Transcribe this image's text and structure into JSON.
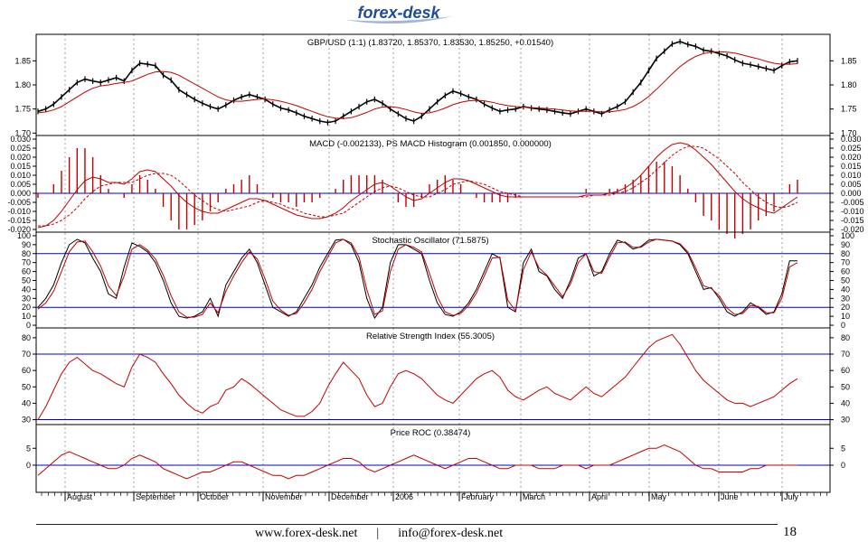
{
  "logo": {
    "text": "forex-desk"
  },
  "footer": {
    "website": "www.forex-desk.net",
    "separator": "|",
    "email": "info@forex-desk.net",
    "page_number": "18"
  },
  "colors": {
    "price": "#000000",
    "signal": "#c00000",
    "level": "#0000cc",
    "grid": "#888888",
    "logo": "#1f4b9a"
  },
  "chart_data": [
    {
      "type": "line",
      "title": "GBP/USD (1:1) (1.83720, 1.85370, 1.83530, 1.85250, +0.01540)",
      "ylim": [
        1.695,
        1.905
      ],
      "yticks": [
        1.7,
        1.75,
        1.8,
        1.85
      ],
      "ytick_labels": [
        "1.70",
        "1.75",
        "1.80",
        "1.85"
      ],
      "series": [
        {
          "values": [
            1.745,
            1.75,
            1.76,
            1.775,
            1.79,
            1.805,
            1.812,
            1.808,
            1.805,
            1.81,
            1.815,
            1.808,
            1.83,
            1.845,
            1.843,
            1.84,
            1.82,
            1.81,
            1.79,
            1.78,
            1.77,
            1.762,
            1.755,
            1.75,
            1.758,
            1.768,
            1.775,
            1.78,
            1.775,
            1.77,
            1.76,
            1.752,
            1.748,
            1.742,
            1.735,
            1.73,
            1.725,
            1.722,
            1.725,
            1.735,
            1.745,
            1.755,
            1.765,
            1.77,
            1.762,
            1.75,
            1.74,
            1.73,
            1.725,
            1.735,
            1.75,
            1.765,
            1.778,
            1.787,
            1.782,
            1.775,
            1.77,
            1.76,
            1.752,
            1.745,
            1.748,
            1.75,
            1.755,
            1.752,
            1.75,
            1.748,
            1.745,
            1.742,
            1.74,
            1.745,
            1.75,
            1.745,
            1.74,
            1.748,
            1.755,
            1.765,
            1.785,
            1.805,
            1.83,
            1.855,
            1.87,
            1.885,
            1.89,
            1.884,
            1.88,
            1.872,
            1.87,
            1.865,
            1.86,
            1.852,
            1.845,
            1.842,
            1.838,
            1.834,
            1.83,
            1.84,
            1.848,
            1.85
          ]
        },
        {
          "values": [
            1.742,
            1.744,
            1.748,
            1.755,
            1.765,
            1.775,
            1.785,
            1.793,
            1.798,
            1.8,
            1.803,
            1.805,
            1.808,
            1.815,
            1.822,
            1.827,
            1.828,
            1.826,
            1.82,
            1.811,
            1.802,
            1.793,
            1.784,
            1.775,
            1.769,
            1.766,
            1.766,
            1.768,
            1.77,
            1.771,
            1.769,
            1.766,
            1.762,
            1.757,
            1.751,
            1.745,
            1.739,
            1.734,
            1.731,
            1.73,
            1.732,
            1.737,
            1.743,
            1.75,
            1.754,
            1.755,
            1.753,
            1.749,
            1.744,
            1.741,
            1.742,
            1.746,
            1.752,
            1.759,
            1.764,
            1.767,
            1.768,
            1.767,
            1.764,
            1.76,
            1.757,
            1.755,
            1.754,
            1.753,
            1.752,
            1.751,
            1.75,
            1.748,
            1.746,
            1.745,
            1.745,
            1.745,
            1.744,
            1.744,
            1.746,
            1.749,
            1.755,
            1.764,
            1.776,
            1.791,
            1.807,
            1.823,
            1.838,
            1.85,
            1.859,
            1.865,
            1.868,
            1.869,
            1.868,
            1.866,
            1.862,
            1.858,
            1.854,
            1.849,
            1.845,
            1.843,
            1.843,
            1.844
          ]
        }
      ]
    },
    {
      "type": "line",
      "title": "MACD (-0.002133), PS MACD Histogram (0.001850, 0.000000)",
      "ylim": [
        -0.0215,
        0.032
      ],
      "yticks": [
        -0.02,
        -0.015,
        -0.01,
        -0.005,
        0.0,
        0.005,
        0.01,
        0.015,
        0.02,
        0.025,
        0.03
      ],
      "ytick_labels": [
        "-0.020",
        "-0.015",
        "-0.010",
        "-0.005",
        "0.000",
        "0.005",
        "0.010",
        "0.015",
        "0.020",
        "0.025",
        "0.030"
      ],
      "levels": [
        0
      ],
      "series": [
        {
          "values": [
            -0.019,
            -0.018,
            -0.015,
            -0.01,
            -0.004,
            0.002,
            0.007,
            0.009,
            0.008,
            0.006,
            0.006,
            0.005,
            0.008,
            0.012,
            0.013,
            0.012,
            0.008,
            0.004,
            -0.001,
            -0.005,
            -0.008,
            -0.01,
            -0.011,
            -0.011,
            -0.009,
            -0.007,
            -0.005,
            -0.003,
            -0.003,
            -0.004,
            -0.006,
            -0.008,
            -0.01,
            -0.012,
            -0.013,
            -0.014,
            -0.014,
            -0.013,
            -0.011,
            -0.008,
            -0.004,
            -0.001,
            0.002,
            0.005,
            0.006,
            0.004,
            0.001,
            -0.002,
            -0.004,
            -0.003,
            0.0,
            0.003,
            0.006,
            0.008,
            0.008,
            0.007,
            0.005,
            0.003,
            0.001,
            -0.001,
            -0.002,
            -0.002,
            -0.002,
            -0.002,
            -0.002,
            -0.002,
            -0.002,
            -0.002,
            -0.002,
            -0.002,
            -0.001,
            -0.001,
            -0.001,
            0.0,
            0.001,
            0.003,
            0.006,
            0.01,
            0.015,
            0.02,
            0.024,
            0.027,
            0.028,
            0.027,
            0.024,
            0.02,
            0.016,
            0.011,
            0.006,
            0.001,
            -0.003,
            -0.006,
            -0.008,
            -0.01,
            -0.011,
            -0.008,
            -0.005,
            -0.002
          ]
        },
        {
          "values": [
            -0.018,
            -0.018,
            -0.017,
            -0.015,
            -0.012,
            -0.008,
            -0.003,
            0.001,
            0.004,
            0.005,
            0.006,
            0.006,
            0.006,
            0.008,
            0.01,
            0.011,
            0.011,
            0.01,
            0.007,
            0.003,
            -0.001,
            -0.004,
            -0.007,
            -0.009,
            -0.01,
            -0.009,
            -0.008,
            -0.007,
            -0.005,
            -0.004,
            -0.005,
            -0.006,
            -0.008,
            -0.009,
            -0.011,
            -0.012,
            -0.013,
            -0.013,
            -0.012,
            -0.011,
            -0.008,
            -0.005,
            -0.002,
            0.001,
            0.003,
            0.004,
            0.003,
            0.001,
            -0.001,
            -0.002,
            -0.002,
            0.0,
            0.002,
            0.005,
            0.006,
            0.007,
            0.006,
            0.005,
            0.003,
            0.001,
            0.0,
            -0.001,
            -0.002,
            -0.002,
            -0.002,
            -0.002,
            -0.002,
            -0.002,
            -0.002,
            -0.002,
            -0.002,
            -0.001,
            -0.001,
            -0.001,
            0.0,
            0.001,
            0.003,
            0.006,
            0.009,
            0.013,
            0.017,
            0.021,
            0.024,
            0.026,
            0.026,
            0.025,
            0.022,
            0.019,
            0.015,
            0.011,
            0.006,
            0.002,
            -0.002,
            -0.005,
            -0.007,
            -0.008,
            -0.007,
            -0.005
          ]
        }
      ]
    },
    {
      "type": "line",
      "title": "Stochastic Oscillator (71.5875)",
      "ylim": [
        -3,
        104
      ],
      "yticks": [
        0,
        10,
        20,
        30,
        40,
        50,
        60,
        70,
        80,
        90,
        100
      ],
      "ytick_labels": [
        "0",
        "10",
        "20",
        "30",
        "40",
        "50",
        "60",
        "70",
        "80",
        "90",
        "100"
      ],
      "levels": [
        20,
        80
      ],
      "series": [
        {
          "values": [
            20,
            30,
            45,
            70,
            90,
            96,
            92,
            75,
            60,
            35,
            30,
            65,
            92,
            88,
            82,
            70,
            50,
            25,
            10,
            8,
            10,
            15,
            30,
            10,
            45,
            60,
            75,
            85,
            70,
            45,
            20,
            15,
            10,
            15,
            30,
            45,
            65,
            80,
            95,
            96,
            90,
            70,
            30,
            8,
            20,
            70,
            90,
            90,
            85,
            80,
            50,
            25,
            12,
            10,
            15,
            25,
            40,
            60,
            80,
            75,
            20,
            15,
            70,
            85,
            60,
            55,
            40,
            30,
            50,
            75,
            80,
            55,
            60,
            80,
            95,
            92,
            85,
            88,
            95,
            96,
            95,
            94,
            90,
            80,
            60,
            40,
            42,
            30,
            15,
            10,
            15,
            25,
            20,
            12,
            15,
            35,
            72,
            72
          ]
        },
        {
          "values": [
            18,
            25,
            38,
            60,
            82,
            93,
            94,
            82,
            66,
            44,
            33,
            55,
            85,
            90,
            84,
            74,
            56,
            33,
            15,
            9,
            9,
            12,
            25,
            14,
            38,
            55,
            70,
            82,
            74,
            52,
            27,
            17,
            11,
            13,
            25,
            40,
            60,
            76,
            92,
            96,
            92,
            76,
            40,
            12,
            16,
            60,
            85,
            90,
            87,
            82,
            58,
            32,
            15,
            11,
            13,
            22,
            36,
            55,
            75,
            76,
            28,
            16,
            62,
            82,
            64,
            56,
            44,
            32,
            46,
            70,
            80,
            60,
            58,
            76,
            92,
            93,
            87,
            87,
            93,
            96,
            95,
            94,
            91,
            82,
            64,
            44,
            41,
            33,
            19,
            12,
            13,
            22,
            21,
            14,
            14,
            30,
            65,
            70
          ]
        }
      ]
    },
    {
      "type": "line",
      "title": "Relative Strength Index (55.3005)",
      "ylim": [
        27,
        86
      ],
      "yticks": [
        30,
        40,
        50,
        60,
        70,
        80
      ],
      "ytick_labels": [
        "30",
        "40",
        "50",
        "60",
        "70",
        "80"
      ],
      "levels": [
        30,
        70
      ],
      "series": [
        {
          "values": [
            30,
            38,
            48,
            58,
            65,
            68,
            64,
            60,
            58,
            55,
            52,
            50,
            62,
            70,
            68,
            65,
            58,
            52,
            45,
            40,
            36,
            34,
            38,
            40,
            48,
            50,
            55,
            52,
            48,
            44,
            40,
            36,
            34,
            32,
            32,
            35,
            40,
            50,
            58,
            65,
            60,
            55,
            45,
            38,
            40,
            50,
            58,
            60,
            58,
            55,
            50,
            45,
            42,
            40,
            45,
            50,
            55,
            58,
            60,
            56,
            48,
            44,
            42,
            45,
            48,
            50,
            46,
            44,
            42,
            46,
            50,
            46,
            44,
            48,
            52,
            56,
            62,
            68,
            74,
            78,
            80,
            82,
            76,
            68,
            60,
            54,
            50,
            46,
            42,
            40,
            40,
            38,
            40,
            42,
            44,
            48,
            52,
            55
          ]
        }
      ]
    },
    {
      "type": "line",
      "title": "Price ROC (0.38474)",
      "ylim": [
        -8,
        12
      ],
      "yticks": [
        0,
        5
      ],
      "ytick_labels": [
        "0",
        "5"
      ],
      "levels": [
        0
      ],
      "series": [
        {
          "values": [
            -3,
            -1,
            1,
            3,
            4,
            3,
            2,
            1,
            0,
            -1,
            -1,
            0,
            2,
            3,
            2,
            1,
            -1,
            -2,
            -3,
            -4,
            -3,
            -2,
            -2,
            -1,
            0,
            1,
            1,
            0,
            -1,
            -2,
            -3,
            -3,
            -4,
            -3,
            -3,
            -2,
            -1,
            0,
            1,
            2,
            2,
            1,
            -1,
            -2,
            -1,
            0,
            1,
            2,
            3,
            2,
            1,
            0,
            -1,
            0,
            1,
            2,
            2,
            1,
            0,
            -1,
            -1,
            0,
            0,
            0,
            -1,
            -1,
            -1,
            0,
            0,
            0,
            -1,
            0,
            0,
            0,
            1,
            2,
            3,
            4,
            5,
            5,
            6,
            5,
            4,
            2,
            0,
            -1,
            -1,
            -2,
            -2,
            -2,
            -2,
            -1,
            -1,
            0,
            0,
            0,
            0,
            0
          ]
        }
      ]
    },
    {
      "type": "line",
      "x_axis": true,
      "tick_labels": [
        "August",
        "September",
        "October",
        "November",
        "December",
        "2006",
        "February",
        "March",
        "April",
        "May",
        "June",
        "July"
      ]
    }
  ]
}
